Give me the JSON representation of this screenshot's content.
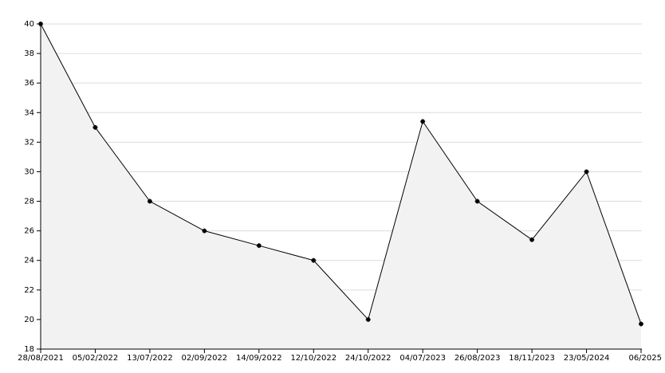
{
  "chart_data": {
    "type": "line",
    "categories": [
      "28/08/2021",
      "05/02/2022",
      "13/07/2022",
      "02/09/2022",
      "14/09/2022",
      "12/10/2022",
      "24/10/2022",
      "04/07/2023",
      "26/08/2023",
      "18/11/2023",
      "23/05/2024",
      "06/2025"
    ],
    "values": [
      40,
      33,
      28,
      26,
      25,
      24,
      20,
      33.4,
      28,
      25.4,
      30,
      19.7
    ],
    "color": "#000000",
    "fill": "#f2f2f2",
    "ylim": [
      18,
      40
    ],
    "yticks": [
      18,
      20,
      22,
      24,
      26,
      28,
      30,
      32,
      34,
      36,
      38,
      40
    ],
    "grid": true
  }
}
